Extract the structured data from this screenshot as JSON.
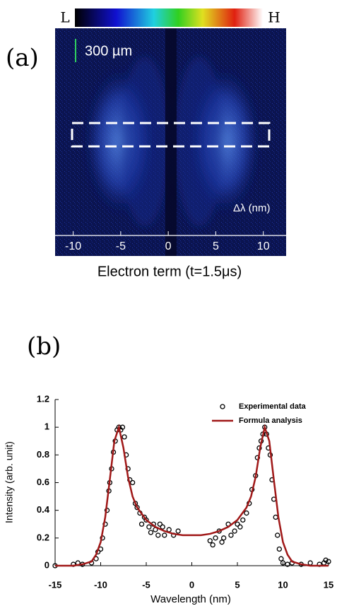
{
  "chart_data": [
    {
      "type": "image",
      "label": "(a)",
      "colorbar_low": "L",
      "colorbar_high": "H",
      "scale_label": "300 µm",
      "axis_label": "Δλ (nm)",
      "xlabel": "Electron term (t=1.5μs)",
      "xlim": [
        -11.9,
        12.4
      ],
      "xticks": [
        -10,
        -5,
        0,
        5,
        10
      ]
    },
    {
      "type": "line",
      "label": "(b)",
      "xlabel": "Wavelength (nm)",
      "ylabel": "Intensity (arb. unit)",
      "xlim": [
        -15,
        15
      ],
      "xticks": [
        -15,
        -10,
        -5,
        0,
        5,
        10,
        15
      ],
      "ylim": [
        0,
        1.2
      ],
      "yticks": [
        0,
        0.2,
        0.4,
        0.6,
        0.8,
        1,
        1.2
      ],
      "legend": "top-right",
      "series": [
        {
          "name": "Experimental data",
          "mode": "markers",
          "color": "#000000",
          "x": [
            -15,
            -13,
            -12.5,
            -12,
            -11,
            -10.5,
            -10.3,
            -10,
            -9.8,
            -9.5,
            -9.3,
            -9.1,
            -9,
            -8.8,
            -8.6,
            -8.4,
            -8.2,
            -8,
            -7.8,
            -7.6,
            -7.4,
            -7.2,
            -7,
            -6.8,
            -6.5,
            -6.2,
            -6,
            -5.7,
            -5.5,
            -5.2,
            -5,
            -4.7,
            -4.5,
            -4.2,
            -4,
            -3.7,
            -3.5,
            -3.2,
            -3,
            -2.5,
            -2,
            -1.5,
            2,
            2.3,
            2.6,
            3,
            3.3,
            3.5,
            4,
            4.3,
            4.7,
            5,
            5.3,
            5.6,
            6,
            6.3,
            6.6,
            7,
            7.2,
            7.4,
            7.6,
            7.8,
            8,
            8.2,
            8.4,
            8.6,
            8.8,
            9,
            9.2,
            9.4,
            9.6,
            9.8,
            10,
            10.5,
            11,
            12,
            13,
            14,
            14.5,
            14.7,
            15
          ],
          "values": [
            0,
            0.01,
            0.02,
            0.01,
            0.02,
            0.05,
            0.1,
            0.12,
            0.2,
            0.3,
            0.4,
            0.54,
            0.6,
            0.7,
            0.82,
            0.9,
            0.98,
            1.0,
            0.98,
            1.0,
            0.93,
            0.8,
            0.7,
            0.62,
            0.6,
            0.45,
            0.42,
            0.38,
            0.3,
            0.35,
            0.33,
            0.28,
            0.24,
            0.3,
            0.26,
            0.22,
            0.3,
            0.28,
            0.22,
            0.26,
            0.22,
            0.25,
            0.18,
            0.15,
            0.2,
            0.25,
            0.17,
            0.2,
            0.3,
            0.22,
            0.25,
            0.3,
            0.28,
            0.33,
            0.38,
            0.45,
            0.55,
            0.65,
            0.78,
            0.85,
            0.9,
            0.95,
            1.0,
            0.95,
            0.85,
            0.8,
            0.62,
            0.48,
            0.35,
            0.22,
            0.12,
            0.05,
            0.02,
            0.01,
            0.02,
            0.01,
            0.02,
            0.01,
            0.02,
            0.04,
            0.03
          ]
        },
        {
          "name": "Formula analysis",
          "mode": "line",
          "color": "#a01818",
          "x": [
            -15,
            -13,
            -12,
            -11,
            -10.5,
            -10,
            -9.5,
            -9,
            -8.5,
            -8,
            -7.5,
            -7,
            -6.5,
            -6,
            -5,
            -4,
            -3,
            -2,
            -1,
            0,
            1,
            2,
            3,
            4,
            5,
            6,
            6.5,
            7,
            7.5,
            8,
            8.5,
            9,
            9.5,
            10,
            10.5,
            11,
            12,
            13,
            15
          ],
          "values": [
            0,
            0,
            0.01,
            0.03,
            0.08,
            0.17,
            0.35,
            0.62,
            0.9,
            1.0,
            0.85,
            0.64,
            0.5,
            0.42,
            0.33,
            0.28,
            0.25,
            0.23,
            0.22,
            0.22,
            0.22,
            0.23,
            0.25,
            0.28,
            0.33,
            0.42,
            0.5,
            0.64,
            0.85,
            1.0,
            0.9,
            0.62,
            0.35,
            0.17,
            0.08,
            0.03,
            0.01,
            0,
            0
          ]
        }
      ]
    }
  ]
}
